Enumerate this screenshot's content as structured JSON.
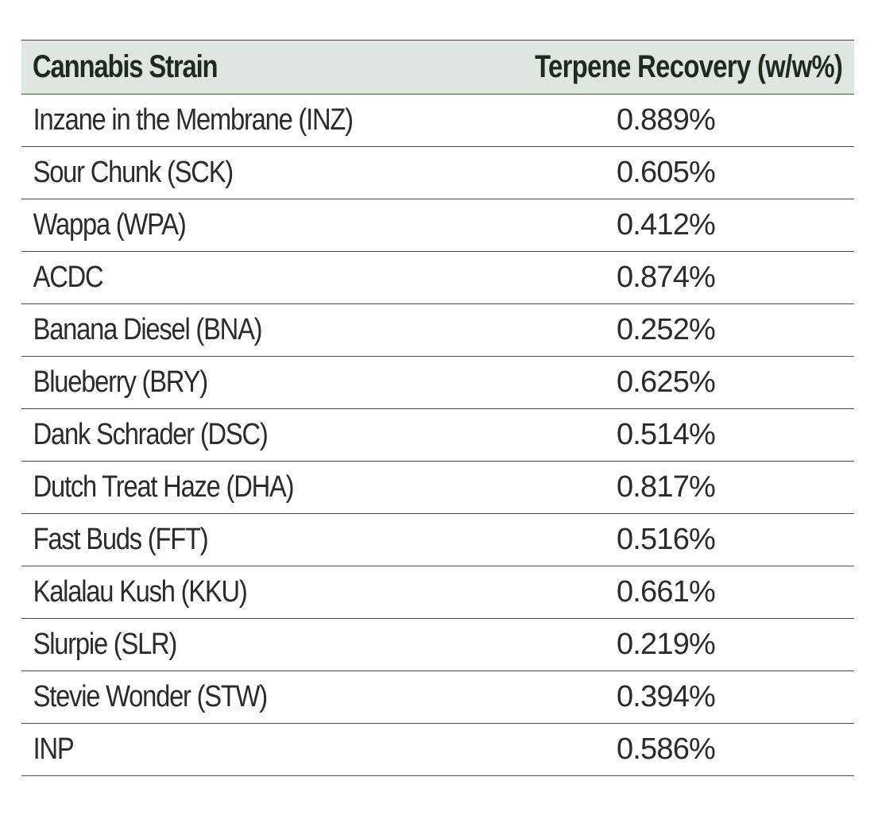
{
  "table": {
    "headers": {
      "strain": "Cannabis Strain",
      "recovery": "Terpene Recovery (w/w%)"
    },
    "rows": [
      {
        "strain": "Inzane in the Membrane (INZ)",
        "recovery": "0.889%"
      },
      {
        "strain": "Sour Chunk (SCK)",
        "recovery": "0.605%"
      },
      {
        "strain": "Wappa (WPA)",
        "recovery": "0.412%"
      },
      {
        "strain": "ACDC",
        "recovery": "0.874%"
      },
      {
        "strain": "Banana Diesel (BNA)",
        "recovery": "0.252%"
      },
      {
        "strain": "Blueberry (BRY)",
        "recovery": "0.625%"
      },
      {
        "strain": "Dank Schrader (DSC)",
        "recovery": "0.514%"
      },
      {
        "strain": "Dutch Treat Haze (DHA)",
        "recovery": "0.817%"
      },
      {
        "strain": "Fast Buds (FFT)",
        "recovery": "0.516%"
      },
      {
        "strain": "Kalalau Kush (KKU)",
        "recovery": "0.661%"
      },
      {
        "strain": "Slurpie (SLR)",
        "recovery": "0.219%"
      },
      {
        "strain": "Stevie Wonder (STW)",
        "recovery": "0.394%"
      },
      {
        "strain": "INP",
        "recovery": "0.586%"
      }
    ]
  }
}
